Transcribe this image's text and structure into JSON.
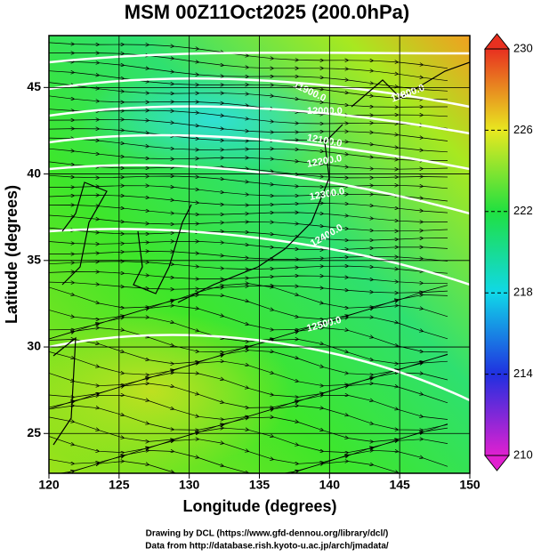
{
  "title": "MSM 00Z11Oct2025 (200.0hPa)",
  "map": {
    "xlabel": "Longitude (degrees)",
    "ylabel": "Latitude  (degrees)",
    "xlim": [
      120,
      150
    ],
    "ylim": [
      22.7,
      48
    ],
    "xticks": [
      120,
      125,
      130,
      135,
      140,
      145,
      150
    ],
    "yticks": [
      25,
      30,
      35,
      40,
      45
    ],
    "grid": true,
    "contour_labels": [
      "11800.0",
      "11900.0",
      "12000.0",
      "12100.0",
      "12200.0",
      "12300.0",
      "12400.0",
      "12500.0"
    ]
  },
  "colorbar": {
    "lim": [
      210,
      230
    ],
    "ticks": [
      210,
      214,
      218,
      222,
      226,
      230
    ]
  },
  "footer": [
    "Drawing by DCL (https://www.gfd-dennou.org/library/dcl/)",
    "Data from http://database.rish.kyoto-u.ac.jp/arch/jmadata/"
  ]
}
